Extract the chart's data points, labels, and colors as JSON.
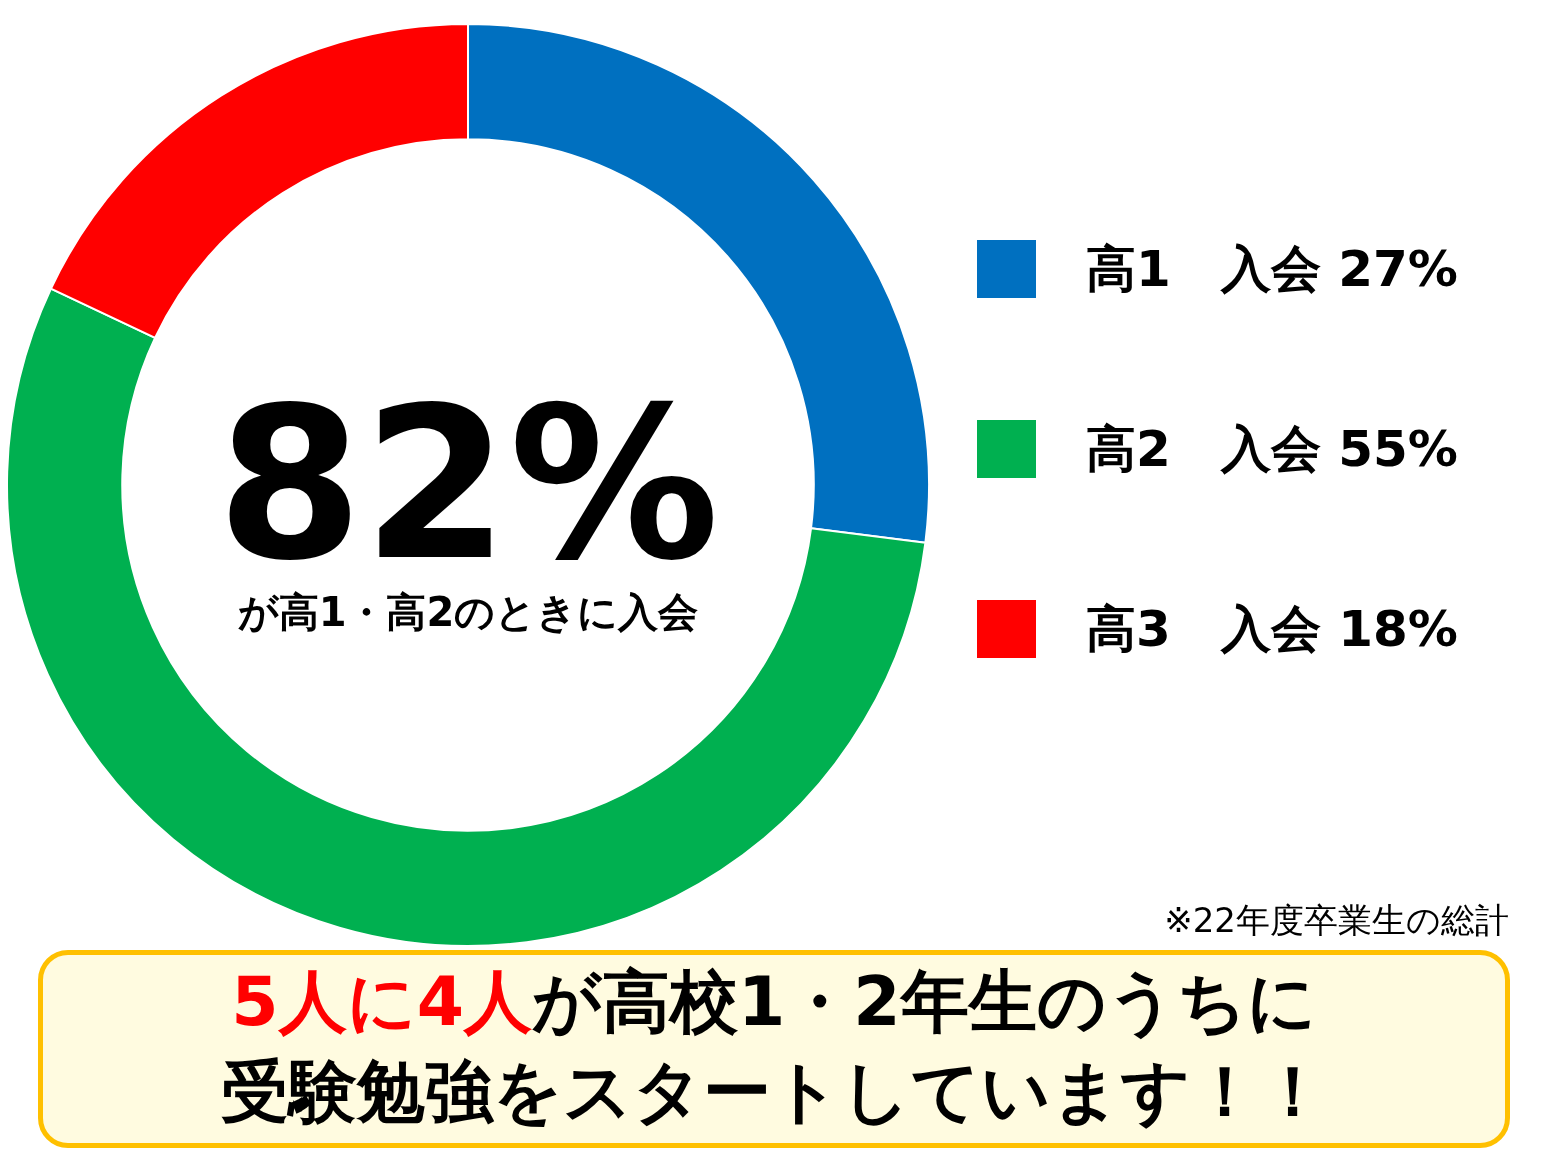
{
  "chart_data": {
    "type": "donut",
    "categories": [
      "高1　入会",
      "高2　入会",
      "高3　入会"
    ],
    "values": [
      27,
      55,
      18
    ],
    "colors": [
      "#0070c0",
      "#00b050",
      "#ff0000"
    ],
    "value_labels": [
      "27%",
      "55%",
      "18%"
    ],
    "legend": "right",
    "annotations": [
      "82%",
      "が高1・高2のときに入会",
      "※22年度卒業生の総計",
      "5人に4人",
      "が高校1・2年生のうちに",
      "受験勉強をスタートしています！！"
    ]
  }
}
